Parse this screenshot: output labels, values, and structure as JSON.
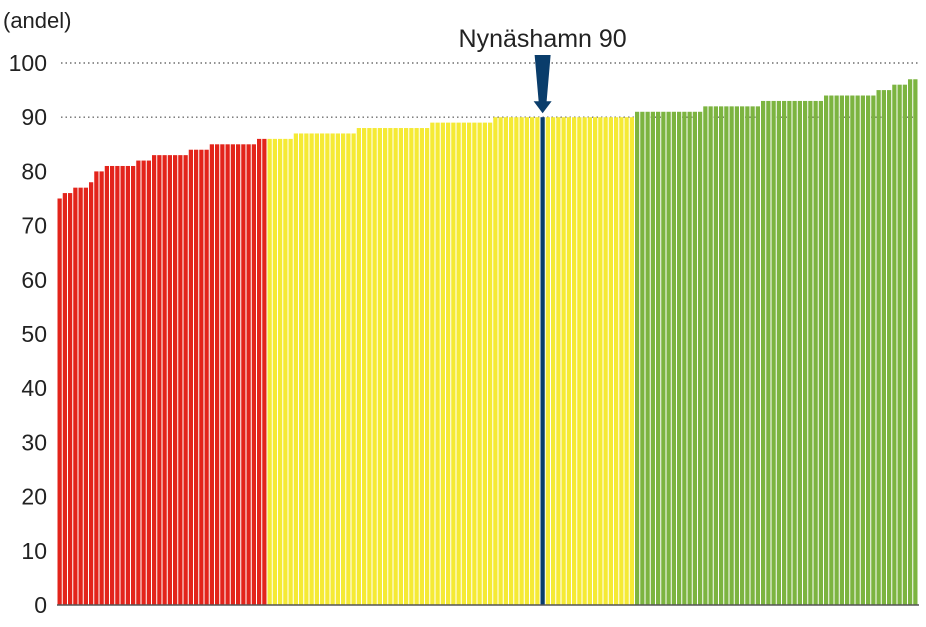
{
  "chart_data": {
    "type": "bar",
    "ylabel": "(andel)",
    "ylim": [
      0,
      100
    ],
    "yticks": [
      "0",
      "10",
      "20",
      "30",
      "40",
      "50",
      "60",
      "70",
      "80",
      "90",
      "100"
    ],
    "gridlines": [
      90,
      100
    ],
    "segments": [
      {
        "color": "#e3241b",
        "values": [
          75,
          76,
          76,
          77,
          77,
          77,
          78,
          80,
          80,
          81,
          81,
          81,
          81,
          81,
          81,
          82,
          82,
          82,
          83,
          83,
          83,
          83,
          83,
          83,
          83,
          84,
          84,
          84,
          84,
          85,
          85,
          85,
          85,
          85,
          85,
          85,
          85,
          85,
          86,
          86
        ]
      },
      {
        "color": "#f5ea35",
        "values": [
          86,
          86,
          86,
          86,
          86,
          87,
          87,
          87,
          87,
          87,
          87,
          87,
          87,
          87,
          87,
          87,
          87,
          88,
          88,
          88,
          88,
          88,
          88,
          88,
          88,
          88,
          88,
          88,
          88,
          88,
          88,
          89,
          89,
          89,
          89,
          89,
          89,
          89,
          89,
          89,
          89,
          89,
          89,
          90,
          90,
          90,
          90,
          90,
          90,
          90,
          90,
          90
        ]
      },
      {
        "color": "#0a3d6b",
        "highlight": true,
        "values": [
          90
        ]
      },
      {
        "color": "#f5ea35",
        "values": [
          90,
          90,
          90,
          90,
          90,
          90,
          90,
          90,
          90,
          90,
          90,
          90,
          90,
          90,
          90,
          90,
          90
        ]
      },
      {
        "color": "#7cb440",
        "values": [
          91,
          91,
          91,
          91,
          91,
          91,
          91,
          91,
          91,
          91,
          91,
          91,
          91,
          92,
          92,
          92,
          92,
          92,
          92,
          92,
          92,
          92,
          92,
          92,
          93,
          93,
          93,
          93,
          93,
          93,
          93,
          93,
          93,
          93,
          93,
          93,
          94,
          94,
          94,
          94,
          94,
          94,
          94,
          94,
          94,
          94,
          95,
          95,
          95,
          96,
          96,
          96,
          97,
          97
        ]
      }
    ],
    "annotation": {
      "text": "Nynäshamn 90",
      "color": "#0a3d6b"
    }
  }
}
